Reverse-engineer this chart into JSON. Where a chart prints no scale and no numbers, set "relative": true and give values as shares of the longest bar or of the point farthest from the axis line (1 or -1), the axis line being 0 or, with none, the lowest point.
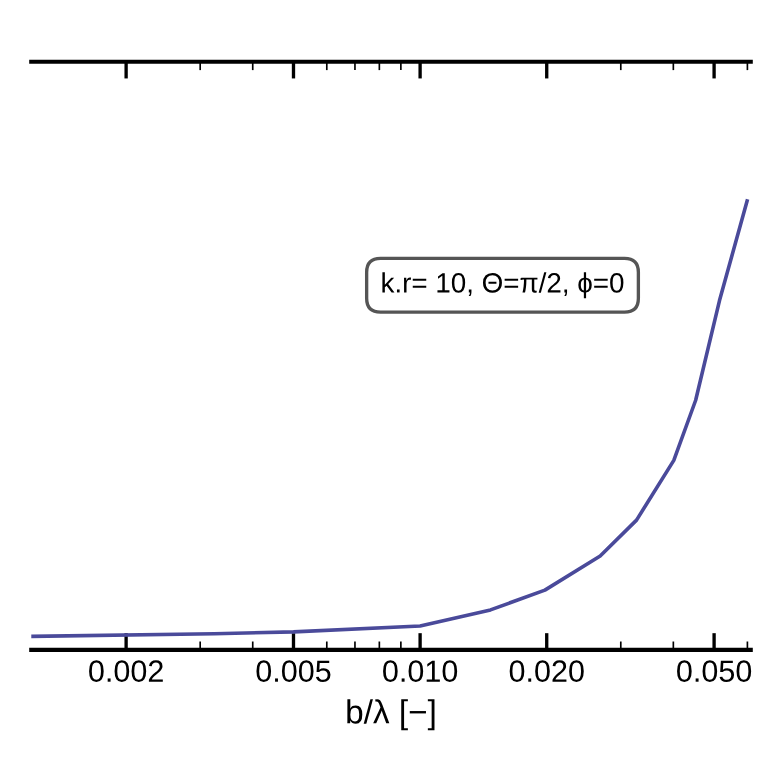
{
  "chart_data": {
    "type": "line",
    "xlabel": "b/λ [−]",
    "log": "x",
    "relative": true,
    "xlim": [
      0.00119,
      0.0611
    ],
    "xticks": [
      {
        "value": 0.002,
        "label": "0.002"
      },
      {
        "value": 0.005,
        "label": "0.005"
      },
      {
        "value": 0.01,
        "label": "0.010"
      },
      {
        "value": 0.02,
        "label": "0.020"
      },
      {
        "value": 0.05,
        "label": "0.050"
      }
    ],
    "grid": false,
    "marker": "none",
    "line_style": "solid",
    "series": [
      {
        "color": "#4a4a9a",
        "x": [
          0.00119,
          0.00324,
          0.005,
          0.01,
          0.0147,
          0.0198,
          0.0268,
          0.0327,
          0.0401,
          0.0452,
          0.0515,
          0.0599
        ],
        "values": [
          0.03,
          0.036,
          0.04,
          0.053,
          0.089,
          0.133,
          0.209,
          0.289,
          0.422,
          0.556,
          0.778,
          1
        ]
      }
    ],
    "annotations": [
      "k.r= 10, Θ=π/2, ϕ=0"
    ]
  }
}
